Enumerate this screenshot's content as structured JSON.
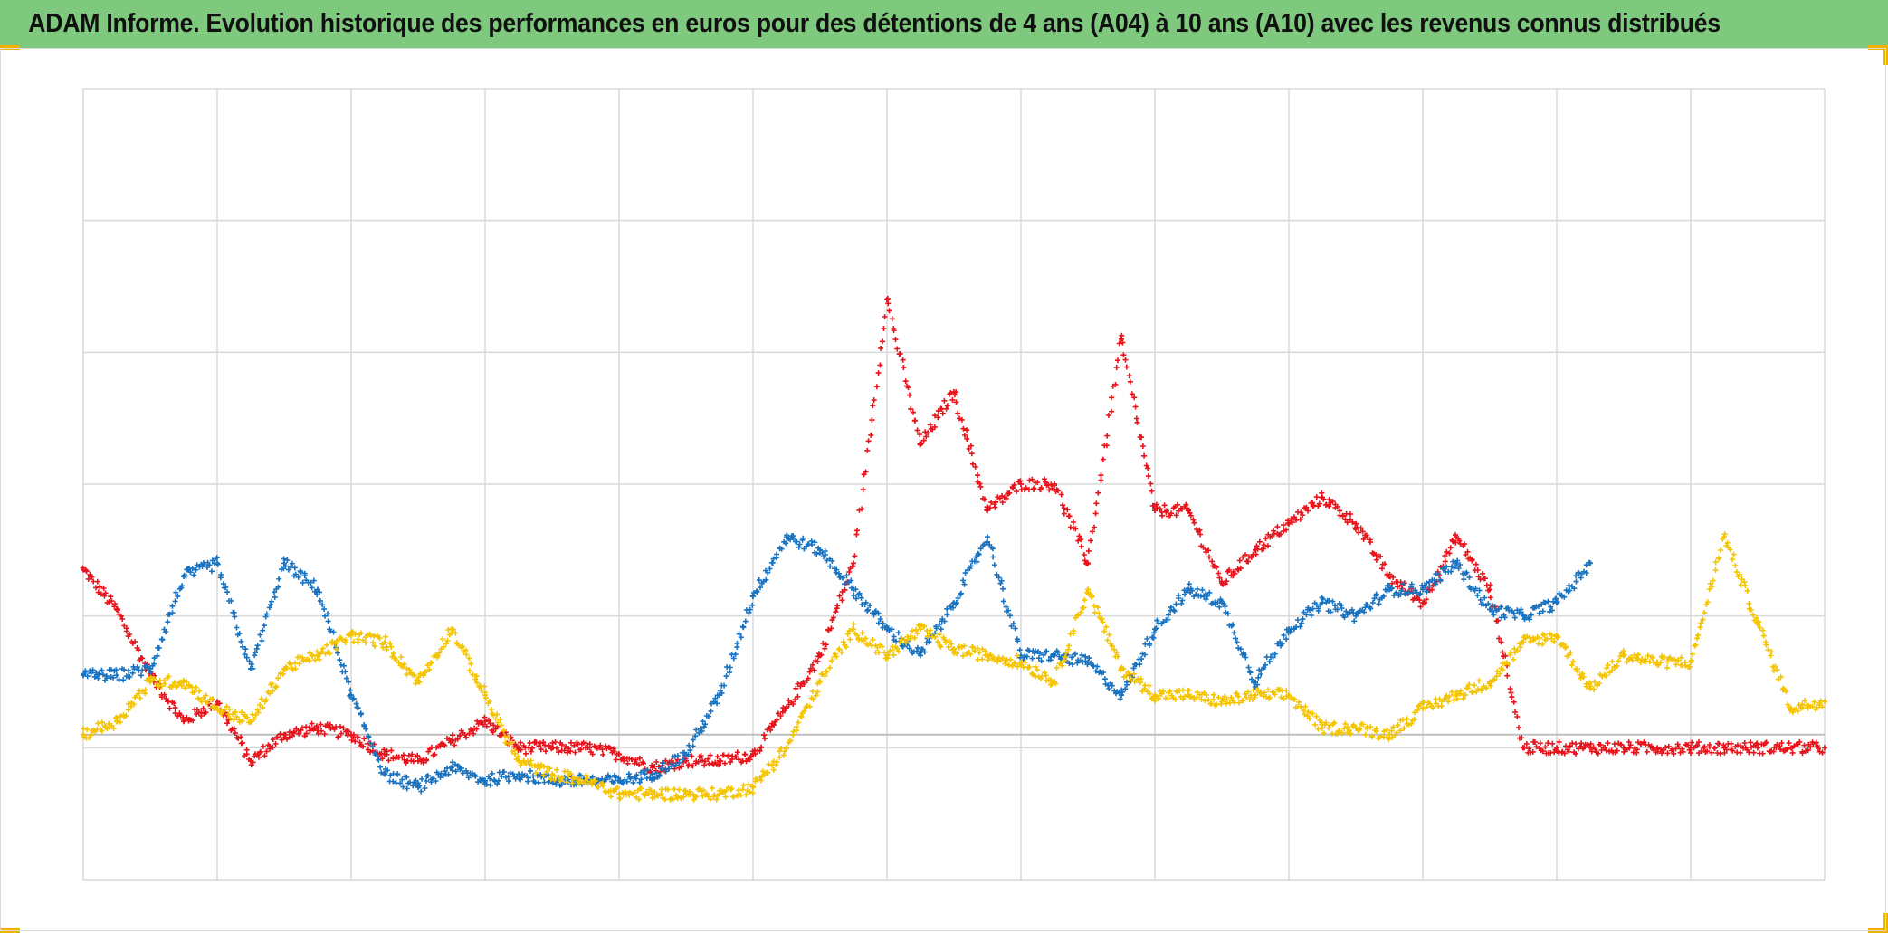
{
  "title": "ADAM Informe. Evolution historique des performances en euros pour des détentions de 4 ans (A04) à 10 ans (A10) avec les revenus connus distribués",
  "colors": {
    "title_bg": "#7fc97f",
    "grid": "#d9d9d9",
    "zero_line": "#bfbfbf",
    "corner_accent": "#f0b400"
  },
  "chart_data": {
    "type": "scatter",
    "marker": "plus",
    "title": "ADAM Informe. Evolution historique des performances en euros pour des détentions de 4 ans (A04) à 10 ans (A10) avec les revenus connus distribués",
    "xlabel": "",
    "ylabel": "",
    "x_grid_divisions": 13,
    "y_grid_divisions": 6,
    "ylim": [
      -1.1,
      4.9
    ],
    "y_zero": 0,
    "grid": true,
    "legend": "none",
    "x": [
      0,
      0.25,
      0.5,
      0.75,
      1,
      1.25,
      1.5,
      1.75,
      2,
      2.25,
      2.5,
      2.75,
      3,
      3.25,
      3.5,
      3.75,
      4,
      4.25,
      4.5,
      4.75,
      5,
      5.25,
      5.5,
      5.75,
      6,
      6.25,
      6.5,
      6.75,
      7,
      7.25,
      7.5,
      7.75,
      8,
      8.25,
      8.5,
      8.75,
      9,
      9.25,
      9.5,
      9.75,
      10,
      10.25,
      10.5,
      10.75,
      11,
      11.25,
      11.5,
      11.75,
      12,
      12.25,
      12.5,
      12.75,
      13
    ],
    "series": [
      {
        "color": "#e8141c",
        "values": [
          1.25,
          0.95,
          0.45,
          0.1,
          0.25,
          -0.2,
          0,
          0.05,
          0,
          -0.15,
          -0.2,
          -0.05,
          0.1,
          -0.1,
          -0.1,
          -0.1,
          -0.15,
          -0.25,
          -0.2,
          -0.2,
          -0.15,
          0.2,
          0.6,
          1.3,
          3.3,
          2.2,
          2.6,
          1.7,
          1.9,
          1.9,
          1.3,
          3.0,
          1.7,
          1.7,
          1.15,
          1.4,
          1.6,
          1.8,
          1.6,
          1.2,
          1.0,
          1.5,
          1.1,
          -0.1,
          -0.1,
          -0.1,
          -0.1,
          -0.1,
          -0.1,
          -0.1,
          -0.1,
          -0.1,
          -0.1
        ]
      },
      {
        "color": "#1a73c0",
        "values": [
          0.45,
          0.45,
          0.5,
          1.2,
          1.3,
          0.5,
          1.3,
          1.1,
          0.3,
          -0.3,
          -0.4,
          -0.25,
          -0.35,
          -0.3,
          -0.35,
          -0.35,
          -0.35,
          -0.3,
          -0.15,
          0.3,
          1.05,
          1.5,
          1.4,
          1.1,
          0.8,
          0.6,
          1.0,
          1.5,
          0.6,
          0.6,
          0.55,
          0.3,
          0.8,
          1.1,
          1.0,
          0.4,
          0.8,
          1.0,
          0.9,
          1.1,
          1.1,
          1.3,
          0.95,
          0.9,
          1.0,
          1.3
        ]
      },
      {
        "color": "#f5c400",
        "values": [
          0.0,
          0.1,
          0.4,
          0.4,
          0.2,
          0.1,
          0.5,
          0.6,
          0.75,
          0.7,
          0.4,
          0.8,
          0.3,
          -0.2,
          -0.3,
          -0.35,
          -0.45,
          -0.45,
          -0.45,
          -0.45,
          -0.4,
          -0.1,
          0.4,
          0.8,
          0.6,
          0.8,
          0.65,
          0.6,
          0.55,
          0.4,
          1.1,
          0.5,
          0.3,
          0.3,
          0.25,
          0.3,
          0.3,
          0.05,
          0.05,
          0.0,
          0.2,
          0.3,
          0.4,
          0.7,
          0.75,
          0.35,
          0.6,
          0.55,
          0.55,
          1.5,
          0.85,
          0.2,
          0.25
        ]
      }
    ]
  }
}
